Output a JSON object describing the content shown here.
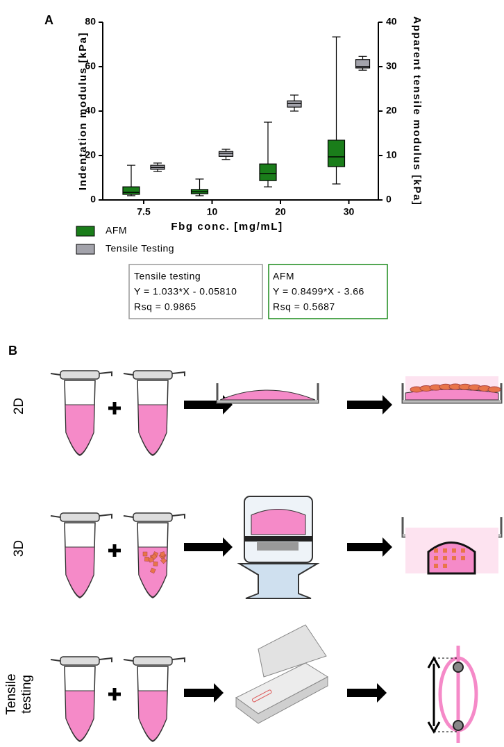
{
  "panel_a": {
    "label": "A"
  },
  "chart_data": {
    "type": "box",
    "categories": [
      "7.5",
      "10",
      "20",
      "30"
    ],
    "xlabel": "Fbg conc. [mg/mL]",
    "ylabel": "Indentation modulus [kPa]",
    "y2label": "Apparent tensile modulus [kPa]",
    "ylim": [
      0,
      80
    ],
    "yticks": [
      0,
      20,
      40,
      60,
      80
    ],
    "y2lim": [
      0,
      40
    ],
    "y2ticks": [
      0,
      10,
      20,
      30,
      40
    ],
    "series": [
      {
        "name": "AFM",
        "color": "#1a7d1a",
        "axis": "y",
        "min": [
          1.9,
          1.9,
          5.9,
          7.2
        ],
        "q1": [
          2.5,
          2.8,
          8.7,
          15
        ],
        "median": [
          3.4,
          3.7,
          11.9,
          19.4
        ],
        "q3": [
          5.9,
          4.7,
          16.2,
          26.9
        ],
        "max": [
          15.6,
          9.4,
          35,
          73.4
        ]
      },
      {
        "name": "Tensile Testing",
        "color": "#a3a3ab",
        "axis": "y2",
        "min": [
          6.4,
          9.1,
          20,
          29.2
        ],
        "q1": [
          6.9,
          9.8,
          20.9,
          29.7
        ],
        "median": [
          7.3,
          10.5,
          21.7,
          30
        ],
        "q3": [
          7.8,
          10.9,
          22.3,
          31.6
        ],
        "max": [
          8.3,
          11.4,
          23.6,
          32.3
        ]
      }
    ]
  },
  "fits": [
    {
      "title": "Tensile testing",
      "equation": "Y = 1.033*X - 0.05810",
      "rsq": "Rsq = 0.9865"
    },
    {
      "title": "AFM",
      "equation": "Y = 0.8499*X - 3.66",
      "rsq": "Rsq = 0.5687"
    }
  ],
  "panel_b": {
    "label": "B",
    "rows": [
      [
        "2D"
      ],
      [
        "3D"
      ],
      [
        "Tensile",
        "testing"
      ]
    ]
  }
}
